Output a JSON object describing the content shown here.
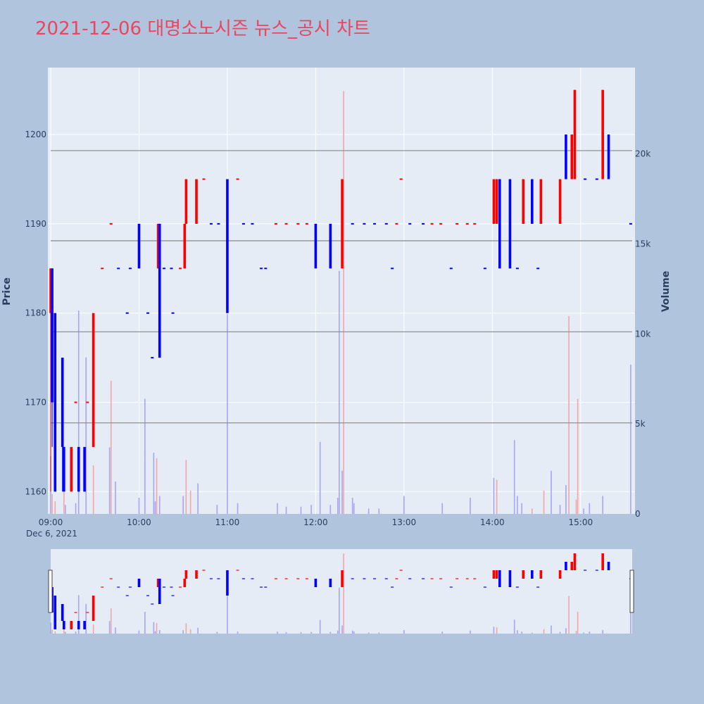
{
  "title": "2021-12-06 대명소노시즌 뉴스_공시 차트",
  "colors": {
    "page_bg": "#b0c4de",
    "plot_bg": "#e5ecf6",
    "up": "#ff0000",
    "down": "#0000ff",
    "volume_up": "#f4a6a6",
    "volume_down": "#a6a6f4",
    "hline": "#888888",
    "title": "#e8475f"
  },
  "chart_data": {
    "type": "candlestick",
    "title": "2021-12-06 대명소노시즌 뉴스_공시 차트",
    "x_axis": {
      "tick_labels": [
        "09:00",
        "10:00",
        "11:00",
        "12:00",
        "13:00",
        "14:00",
        "15:00"
      ],
      "date_label": "Dec 6, 2021",
      "range_minutes": [
        0,
        395
      ]
    },
    "y_axis_price": {
      "label": "Price",
      "ticks": [
        1160,
        1170,
        1180,
        1190,
        1200
      ],
      "range": [
        1157.5,
        1207.5
      ]
    },
    "y_axis_volume": {
      "label": "Volume",
      "ticks": [
        0,
        5000,
        10000,
        15000,
        20000
      ],
      "tick_labels": [
        "0",
        "5k",
        "10k",
        "15k",
        "20k"
      ],
      "range": [
        0,
        24800
      ]
    },
    "horizontal_lines": [
      1198.2,
      1188.1,
      1177.9,
      1167.7
    ],
    "candles": [
      {
        "t": 0,
        "o": 1180,
        "c": 1185,
        "h": 1185,
        "l": 1160
      },
      {
        "t": 1,
        "o": 1185,
        "c": 1170,
        "h": 1185,
        "l": 1165
      },
      {
        "t": 3,
        "o": 1180,
        "c": 1160,
        "h": 1180,
        "l": 1160
      },
      {
        "t": 8,
        "o": 1175,
        "c": 1165,
        "h": 1175,
        "l": 1160
      },
      {
        "t": 9,
        "o": 1165,
        "c": 1160,
        "h": 1165,
        "l": 1160
      },
      {
        "t": 14,
        "o": 1160,
        "c": 1165,
        "h": 1165,
        "l": 1160
      },
      {
        "t": 19,
        "o": 1165,
        "c": 1160,
        "h": 1165,
        "l": 1160
      },
      {
        "t": 23,
        "o": 1165,
        "c": 1160,
        "h": 1165,
        "l": 1160
      },
      {
        "t": 29,
        "o": 1165,
        "c": 1180,
        "h": 1180,
        "l": 1165
      },
      {
        "t": 60,
        "o": 1190,
        "c": 1185,
        "h": 1190,
        "l": 1185
      },
      {
        "t": 73,
        "o": 1185,
        "c": 1190,
        "h": 1190,
        "l": 1185
      },
      {
        "t": 74,
        "o": 1190,
        "c": 1175,
        "h": 1190,
        "l": 1175
      },
      {
        "t": 91,
        "o": 1185,
        "c": 1190,
        "h": 1190,
        "l": 1185
      },
      {
        "t": 92,
        "o": 1190,
        "c": 1195,
        "h": 1195,
        "l": 1190
      },
      {
        "t": 99,
        "o": 1190,
        "c": 1195,
        "h": 1195,
        "l": 1190
      },
      {
        "t": 120,
        "o": 1195,
        "c": 1180,
        "h": 1195,
        "l": 1180
      },
      {
        "t": 180,
        "o": 1190,
        "c": 1185,
        "h": 1190,
        "l": 1185
      },
      {
        "t": 190,
        "o": 1190,
        "c": 1185,
        "h": 1190,
        "l": 1185
      },
      {
        "t": 198,
        "o": 1185,
        "c": 1195,
        "h": 1195,
        "l": 1185
      },
      {
        "t": 301,
        "o": 1190,
        "c": 1195,
        "h": 1195,
        "l": 1190
      },
      {
        "t": 303,
        "o": 1190,
        "c": 1195,
        "h": 1195,
        "l": 1190
      },
      {
        "t": 305,
        "o": 1195,
        "c": 1185,
        "h": 1195,
        "l": 1185
      },
      {
        "t": 312,
        "o": 1195,
        "c": 1185,
        "h": 1195,
        "l": 1185
      },
      {
        "t": 321,
        "o": 1190,
        "c": 1195,
        "h": 1195,
        "l": 1190
      },
      {
        "t": 327,
        "o": 1195,
        "c": 1190,
        "h": 1195,
        "l": 1190
      },
      {
        "t": 333,
        "o": 1190,
        "c": 1195,
        "h": 1195,
        "l": 1190
      },
      {
        "t": 346,
        "o": 1190,
        "c": 1195,
        "h": 1195,
        "l": 1190
      },
      {
        "t": 350,
        "o": 1200,
        "c": 1195,
        "h": 1200,
        "l": 1195
      },
      {
        "t": 354,
        "o": 1195,
        "c": 1200,
        "h": 1200,
        "l": 1195
      },
      {
        "t": 356,
        "o": 1195,
        "c": 1205,
        "h": 1205,
        "l": 1195
      },
      {
        "t": 375,
        "o": 1195,
        "c": 1205,
        "h": 1205,
        "l": 1195
      },
      {
        "t": 379,
        "o": 1200,
        "c": 1195,
        "h": 1200,
        "l": 1195
      }
    ],
    "flat_trades": [
      {
        "t": 17,
        "p": 1170,
        "up": true
      },
      {
        "t": 25,
        "p": 1170,
        "up": true
      },
      {
        "t": 35,
        "p": 1185,
        "up": true
      },
      {
        "t": 41,
        "p": 1190,
        "up": true
      },
      {
        "t": 46,
        "p": 1185,
        "up": false
      },
      {
        "t": 52,
        "p": 1180,
        "up": false
      },
      {
        "t": 54,
        "p": 1185,
        "up": false
      },
      {
        "t": 66,
        "p": 1180,
        "up": false
      },
      {
        "t": 69,
        "p": 1175,
        "up": false
      },
      {
        "t": 77,
        "p": 1185,
        "up": false
      },
      {
        "t": 82,
        "p": 1185,
        "up": false
      },
      {
        "t": 83,
        "p": 1180,
        "up": false
      },
      {
        "t": 88,
        "p": 1185,
        "up": true
      },
      {
        "t": 104,
        "p": 1195,
        "up": true
      },
      {
        "t": 109,
        "p": 1190,
        "up": false
      },
      {
        "t": 114,
        "p": 1190,
        "up": false
      },
      {
        "t": 127,
        "p": 1195,
        "up": true
      },
      {
        "t": 131,
        "p": 1190,
        "up": false
      },
      {
        "t": 137,
        "p": 1190,
        "up": false
      },
      {
        "t": 143,
        "p": 1185,
        "up": false
      },
      {
        "t": 146,
        "p": 1185,
        "up": false
      },
      {
        "t": 153,
        "p": 1190,
        "up": true
      },
      {
        "t": 160,
        "p": 1190,
        "up": true
      },
      {
        "t": 168,
        "p": 1190,
        "up": true
      },
      {
        "t": 174,
        "p": 1190,
        "up": true
      },
      {
        "t": 205,
        "p": 1190,
        "up": false
      },
      {
        "t": 213,
        "p": 1190,
        "up": false
      },
      {
        "t": 220,
        "p": 1190,
        "up": false
      },
      {
        "t": 228,
        "p": 1190,
        "up": false
      },
      {
        "t": 232,
        "p": 1185,
        "up": false
      },
      {
        "t": 235,
        "p": 1190,
        "up": true
      },
      {
        "t": 238,
        "p": 1195,
        "up": true
      },
      {
        "t": 244,
        "p": 1190,
        "up": false
      },
      {
        "t": 253,
        "p": 1190,
        "up": false
      },
      {
        "t": 259,
        "p": 1190,
        "up": true
      },
      {
        "t": 265,
        "p": 1190,
        "up": true
      },
      {
        "t": 272,
        "p": 1185,
        "up": false
      },
      {
        "t": 276,
        "p": 1190,
        "up": true
      },
      {
        "t": 283,
        "p": 1190,
        "up": true
      },
      {
        "t": 288,
        "p": 1190,
        "up": true
      },
      {
        "t": 295,
        "p": 1185,
        "up": false
      },
      {
        "t": 317,
        "p": 1185,
        "up": false
      },
      {
        "t": 331,
        "p": 1185,
        "up": false
      },
      {
        "t": 363,
        "p": 1195,
        "up": false
      },
      {
        "t": 371,
        "p": 1195,
        "up": false
      },
      {
        "t": 394,
        "p": 1190,
        "up": false
      }
    ],
    "volumes": [
      {
        "t": 0,
        "v": 3200,
        "up": false
      },
      {
        "t": 1,
        "v": 1100,
        "up": true
      },
      {
        "t": 3,
        "v": 700,
        "up": true
      },
      {
        "t": 9,
        "v": 1700,
        "up": true
      },
      {
        "t": 10,
        "v": 500,
        "up": false
      },
      {
        "t": 17,
        "v": 600,
        "up": false
      },
      {
        "t": 19,
        "v": 11300,
        "up": false
      },
      {
        "t": 24,
        "v": 8700,
        "up": false
      },
      {
        "t": 29,
        "v": 2700,
        "up": true
      },
      {
        "t": 40,
        "v": 3700,
        "up": false
      },
      {
        "t": 41,
        "v": 7400,
        "up": true
      },
      {
        "t": 44,
        "v": 1800,
        "up": false
      },
      {
        "t": 60,
        "v": 900,
        "up": false
      },
      {
        "t": 64,
        "v": 6400,
        "up": false
      },
      {
        "t": 70,
        "v": 3400,
        "up": false
      },
      {
        "t": 71,
        "v": 700,
        "up": false
      },
      {
        "t": 72,
        "v": 3100,
        "up": true
      },
      {
        "t": 74,
        "v": 1000,
        "up": false
      },
      {
        "t": 90,
        "v": 1000,
        "up": false
      },
      {
        "t": 92,
        "v": 3000,
        "up": true
      },
      {
        "t": 95,
        "v": 1300,
        "up": true
      },
      {
        "t": 100,
        "v": 1700,
        "up": false
      },
      {
        "t": 113,
        "v": 500,
        "up": false
      },
      {
        "t": 120,
        "v": 11100,
        "up": false
      },
      {
        "t": 127,
        "v": 600,
        "up": false
      },
      {
        "t": 154,
        "v": 600,
        "up": false
      },
      {
        "t": 160,
        "v": 400,
        "up": false
      },
      {
        "t": 170,
        "v": 400,
        "up": false
      },
      {
        "t": 177,
        "v": 500,
        "up": false
      },
      {
        "t": 183,
        "v": 4000,
        "up": false
      },
      {
        "t": 190,
        "v": 500,
        "up": false
      },
      {
        "t": 195,
        "v": 900,
        "up": false
      },
      {
        "t": 198,
        "v": 2400,
        "up": false
      },
      {
        "t": 196,
        "v": 13500,
        "up": false
      },
      {
        "t": 199,
        "v": 23500,
        "up": true
      },
      {
        "t": 205,
        "v": 900,
        "up": false
      },
      {
        "t": 206,
        "v": 600,
        "up": false
      },
      {
        "t": 216,
        "v": 300,
        "up": false
      },
      {
        "t": 223,
        "v": 300,
        "up": false
      },
      {
        "t": 240,
        "v": 1000,
        "up": false
      },
      {
        "t": 266,
        "v": 600,
        "up": false
      },
      {
        "t": 285,
        "v": 900,
        "up": false
      },
      {
        "t": 301,
        "v": 2000,
        "up": false
      },
      {
        "t": 315,
        "v": 4100,
        "up": false
      },
      {
        "t": 303,
        "v": 1900,
        "up": true
      },
      {
        "t": 317,
        "v": 1000,
        "up": false
      },
      {
        "t": 320,
        "v": 600,
        "up": false
      },
      {
        "t": 327,
        "v": 300,
        "up": true
      },
      {
        "t": 335,
        "v": 1300,
        "up": true
      },
      {
        "t": 340,
        "v": 2400,
        "up": false
      },
      {
        "t": 346,
        "v": 500,
        "up": false
      },
      {
        "t": 350,
        "v": 1600,
        "up": false
      },
      {
        "t": 352,
        "v": 11000,
        "up": true
      },
      {
        "t": 357,
        "v": 800,
        "up": true
      },
      {
        "t": 358,
        "v": 6400,
        "up": true
      },
      {
        "t": 362,
        "v": 300,
        "up": false
      },
      {
        "t": 366,
        "v": 600,
        "up": false
      },
      {
        "t": 375,
        "v": 1000,
        "up": false
      },
      {
        "t": 394,
        "v": 8300,
        "up": false
      }
    ]
  }
}
